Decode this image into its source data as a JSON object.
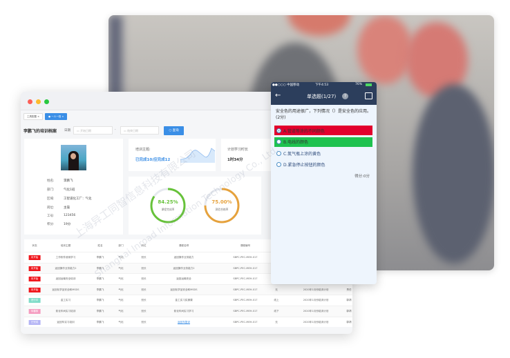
{
  "browser": {
    "tabs": [
      {
        "label": "工具配置"
      },
      {
        "label": "一人一档"
      }
    ],
    "page_title": "李鹏飞的培训档案",
    "date_label": "日期",
    "start_placeholder": "开始日期",
    "end_placeholder": "结束日期",
    "date_sep": "-",
    "search_label": "查询"
  },
  "profile": {
    "fields": [
      {
        "k": "姓名:",
        "v": "李鹏飞"
      },
      {
        "k": "部门:",
        "v": "气化1班"
      },
      {
        "k": "区域:",
        "v": "工智道化工厂：气化"
      },
      {
        "k": "岗位:",
        "v": "主操"
      },
      {
        "k": "工号:",
        "v": "123456"
      },
      {
        "k": "积分:",
        "v": "19分"
      }
    ]
  },
  "stats": {
    "topic_label": "培训主题:",
    "topic_value": "已完成10/应完成12",
    "hours_label": "计划学习时长",
    "hours_value": "1时34分",
    "course_rate": {
      "value": "84.25%",
      "label": "课程完成率",
      "percent": 84.25,
      "color": "#67c23a"
    },
    "exam_rate": {
      "value": "75.00%",
      "label": "测验合格率",
      "percent": 75,
      "color": "#e6a23c"
    }
  },
  "table": {
    "headers": [
      "状态",
      "培训主题",
      "姓名",
      "部门",
      "岗位",
      "课程名称",
      "课程编号",
      "形式",
      "培训计划",
      "讲师"
    ],
    "rows": [
      {
        "status": "未开始",
        "status_color": "#f0151b",
        "c": [
          "工作软件使用学习",
          "李鹏飞",
          "气化",
          "班长",
          "返回操作业务能力",
          "SBPC-PEC-MEH-017",
          "",
          "",
          ""
        ]
      },
      {
        "status": "未开始",
        "status_color": "#f0151b",
        "c": [
          "返回操作业务能力2",
          "李鹏飞",
          "气化",
          "班长",
          "返回操作业务能力2",
          "SBPC-PEC-MEH-017",
          "",
          "",
          ""
        ]
      },
      {
        "status": "未开始",
        "status_color": "#f0151b",
        "c": [
          "返回运输安全培训",
          "李鹏飞",
          "气化",
          "班长",
          "返回运输安全",
          "SBPC-PEC-MEH-017",
          "",
          "",
          ""
        ]
      },
      {
        "status": "未开始",
        "status_color": "#f0151b",
        "c": [
          "返回化学品安全和MSDS",
          "李鹏飞",
          "气化",
          "班长",
          "返回化学品安全和MSDS",
          "SBPC-PEC-MEH-017",
          "无",
          "2020年1月份培训计划",
          "责任"
        ]
      },
      {
        "status": "进行中",
        "status_color": "#7fdcc8",
        "c": [
          "金工实习",
          "李鹏飞",
          "气化",
          "班长",
          "金工实习实操课",
          "SBPC-PEC-MEH-017",
          "线上",
          "2020年1月份培训计划",
          "郭靖"
        ]
      },
      {
        "status": "待審核",
        "status_color": "#f59cc0",
        "c": [
          "氮化车间实习培训",
          "李鹏飞",
          "气化",
          "班长",
          "氮化车间实习学习",
          "SBPC-PEC-MEH-017",
          "线下",
          "2020年1月份培训计划",
          "郭靖"
        ]
      },
      {
        "status": "已完成",
        "status_color": "#b4b4f5",
        "c": [
          "返回车实习培训",
          "李鹏飞",
          "气化",
          "班长",
          "返回车复训",
          "SBPC-PEC-MEH-017",
          "无",
          "2020年1月份培训计划",
          "郭靖"
        ]
      }
    ]
  },
  "phone": {
    "carrier": "●●○○○ 中国移动",
    "time": "下午4:53",
    "battery": "76%",
    "title": "单选题(1/27)",
    "question": "安全色的用途很广，下列情况（）是安全色的应用。(2分)",
    "options": [
      {
        "label": "A.管道等涂的不同颜色",
        "state": "wrong",
        "color": "#e2002d"
      },
      {
        "label": "B.电线的颜色",
        "state": "correct",
        "color": "#1ec24f"
      },
      {
        "label": "C.氮气瓶上涂的黄色"
      },
      {
        "label": "D.紧急停止按钮的颜色"
      }
    ],
    "score": "得分:0分"
  },
  "watermark": {
    "cn": "上海异工同智信息科技有限公司",
    "en": "Shanghai Inroad Information Technology Co., Ltd."
  }
}
